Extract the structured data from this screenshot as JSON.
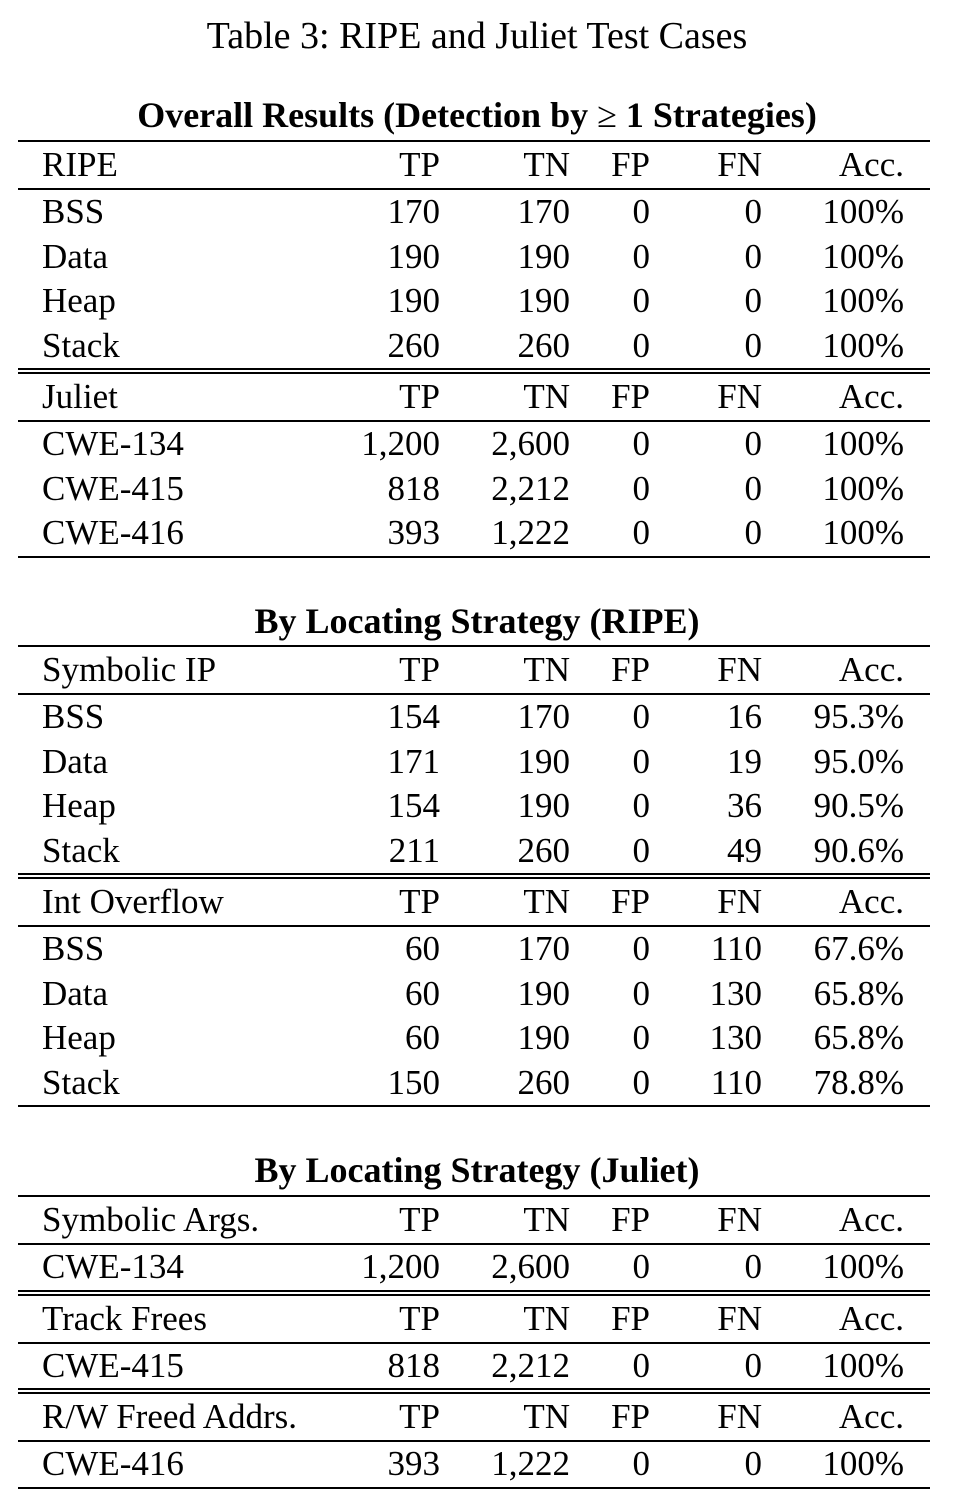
{
  "caption": "Table 3: RIPE and Juliet Test Cases",
  "columns": [
    "TP",
    "TN",
    "FP",
    "FN",
    "Acc."
  ],
  "sections": [
    {
      "title_pre": "Overall Results (Detection by ",
      "title_sym": "≥",
      "title_post": " 1 Strategies)",
      "blocks": [
        {
          "label": "RIPE",
          "rows": [
            {
              "name": "BSS",
              "tp": "170",
              "tn": "170",
              "fp": "0",
              "fn": "0",
              "acc": "100%"
            },
            {
              "name": "Data",
              "tp": "190",
              "tn": "190",
              "fp": "0",
              "fn": "0",
              "acc": "100%"
            },
            {
              "name": "Heap",
              "tp": "190",
              "tn": "190",
              "fp": "0",
              "fn": "0",
              "acc": "100%"
            },
            {
              "name": "Stack",
              "tp": "260",
              "tn": "260",
              "fp": "0",
              "fn": "0",
              "acc": "100%"
            }
          ]
        },
        {
          "label": "Juliet",
          "rows": [
            {
              "name": "CWE-134",
              "tp": "1,200",
              "tn": "2,600",
              "fp": "0",
              "fn": "0",
              "acc": "100%"
            },
            {
              "name": "CWE-415",
              "tp": "818",
              "tn": "2,212",
              "fp": "0",
              "fn": "0",
              "acc": "100%"
            },
            {
              "name": "CWE-416",
              "tp": "393",
              "tn": "1,222",
              "fp": "0",
              "fn": "0",
              "acc": "100%"
            }
          ]
        }
      ]
    },
    {
      "title": "By Locating Strategy (RIPE)",
      "blocks": [
        {
          "label": "Symbolic IP",
          "rows": [
            {
              "name": "BSS",
              "tp": "154",
              "tn": "170",
              "fp": "0",
              "fn": "16",
              "acc": "95.3%"
            },
            {
              "name": "Data",
              "tp": "171",
              "tn": "190",
              "fp": "0",
              "fn": "19",
              "acc": "95.0%"
            },
            {
              "name": "Heap",
              "tp": "154",
              "tn": "190",
              "fp": "0",
              "fn": "36",
              "acc": "90.5%"
            },
            {
              "name": "Stack",
              "tp": "211",
              "tn": "260",
              "fp": "0",
              "fn": "49",
              "acc": "90.6%"
            }
          ]
        },
        {
          "label": "Int Overflow",
          "rows": [
            {
              "name": "BSS",
              "tp": "60",
              "tn": "170",
              "fp": "0",
              "fn": "110",
              "acc": "67.6%"
            },
            {
              "name": "Data",
              "tp": "60",
              "tn": "190",
              "fp": "0",
              "fn": "130",
              "acc": "65.8%"
            },
            {
              "name": "Heap",
              "tp": "60",
              "tn": "190",
              "fp": "0",
              "fn": "130",
              "acc": "65.8%"
            },
            {
              "name": "Stack",
              "tp": "150",
              "tn": "260",
              "fp": "0",
              "fn": "110",
              "acc": "78.8%"
            }
          ]
        }
      ]
    },
    {
      "title": "By Locating Strategy (Juliet)",
      "blocks": [
        {
          "label": "Symbolic Args.",
          "rows": [
            {
              "name": "CWE-134",
              "tp": "1,200",
              "tn": "2,600",
              "fp": "0",
              "fn": "0",
              "acc": "100%"
            }
          ]
        },
        {
          "label": "Track Frees",
          "rows": [
            {
              "name": "CWE-415",
              "tp": "818",
              "tn": "2,212",
              "fp": "0",
              "fn": "0",
              "acc": "100%"
            }
          ]
        },
        {
          "label": "R/W Freed Addrs.",
          "rows": [
            {
              "name": "CWE-416",
              "tp": "393",
              "tn": "1,222",
              "fp": "0",
              "fn": "0",
              "acc": "100%"
            }
          ]
        }
      ]
    }
  ]
}
